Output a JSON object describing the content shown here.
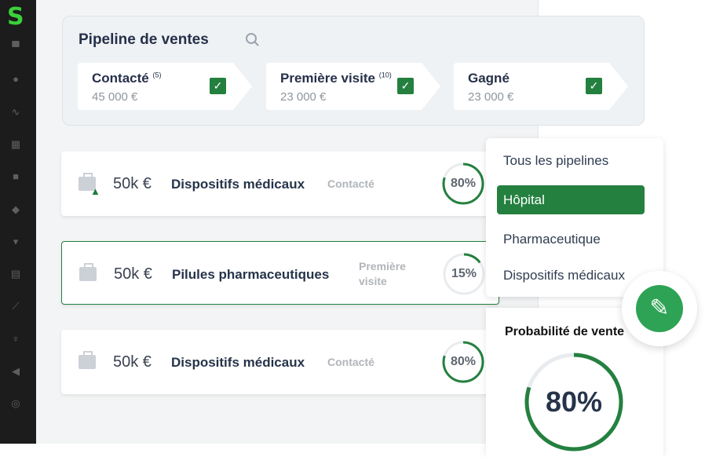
{
  "sidebar": {
    "logo": "S",
    "icons": [
      "store-icon",
      "user-icon",
      "activity-icon",
      "calendar-icon",
      "briefcase-icon",
      "tag-icon",
      "cart-icon",
      "document-icon",
      "chart-icon",
      "trophy-icon",
      "megaphone-icon",
      "target-icon"
    ]
  },
  "pipeline": {
    "title": "Pipeline de ventes",
    "stages": [
      {
        "name": "Contacté",
        "count": "(5)",
        "amount": "45 000 €",
        "checked": true
      },
      {
        "name": "Première visite",
        "count": "(10)",
        "amount": "23 000 €",
        "checked": true
      },
      {
        "name": "Gagné",
        "count": "",
        "amount": "23 000 €",
        "checked": true
      }
    ]
  },
  "deals": [
    {
      "value": "50k €",
      "title": "Dispositifs médicaux",
      "status": "Contacté",
      "probability": "80%",
      "percent": 80,
      "warning": true,
      "selected": false
    },
    {
      "value": "50k €",
      "title": "Pilules pharmaceutiques",
      "status": "Première visite",
      "probability": "15%",
      "percent": 15,
      "warning": false,
      "selected": true
    },
    {
      "value": "50k €",
      "title": "Dispositifs médicaux",
      "status": "Contacté",
      "probability": "80%",
      "percent": 80,
      "warning": false,
      "selected": false
    }
  ],
  "dropdown": {
    "items": [
      "Tous les pipelines",
      "Hôpital",
      "Pharmaceutique",
      "Dispositifs médicaux"
    ],
    "selected": "Hôpital"
  },
  "probability_panel": {
    "title": "Probabilité de vente",
    "value": "80%",
    "percent": 80
  },
  "colors": {
    "accent": "#24803f",
    "sidebar": "#1c1c1c",
    "logo": "#3ad13a"
  }
}
